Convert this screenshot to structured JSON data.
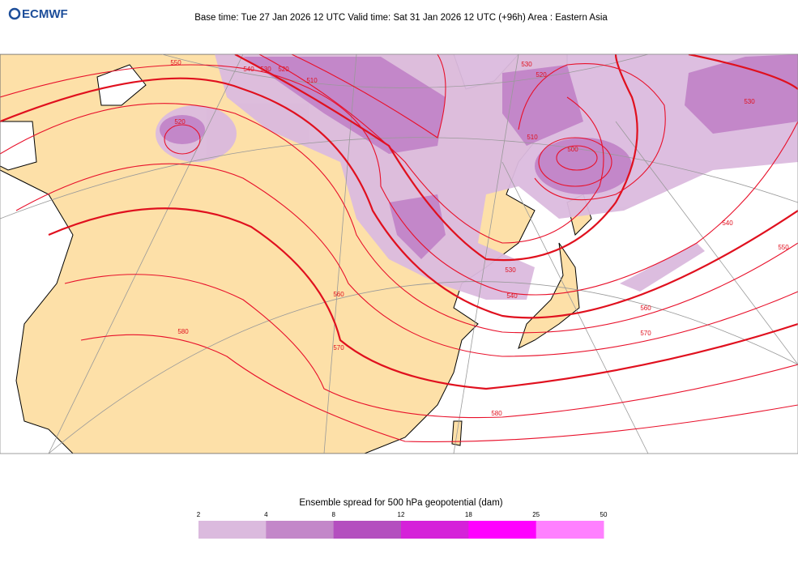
{
  "header": {
    "logo": "ECMWF",
    "title": "Base time: Tue 27 Jan 2026 12 UTC Valid time: Sat 31 Jan 2026 12 UTC (+96h) Area : Eastern Asia"
  },
  "map": {
    "contour_labels": [
      550,
      540,
      530,
      520,
      510,
      530,
      520,
      510,
      500,
      520,
      530,
      540,
      550,
      560,
      570,
      560,
      570,
      580,
      580,
      540,
      530
    ]
  },
  "legend": {
    "title": "Ensemble spread for 500 hPa geopotential (dam)",
    "bins": [
      2,
      4,
      8,
      12,
      18,
      25,
      50
    ],
    "colors": [
      "#dbbade",
      "#c387c9",
      "#b44fbf",
      "#d522d9",
      "#ff00ff",
      "#ff80ff"
    ]
  }
}
